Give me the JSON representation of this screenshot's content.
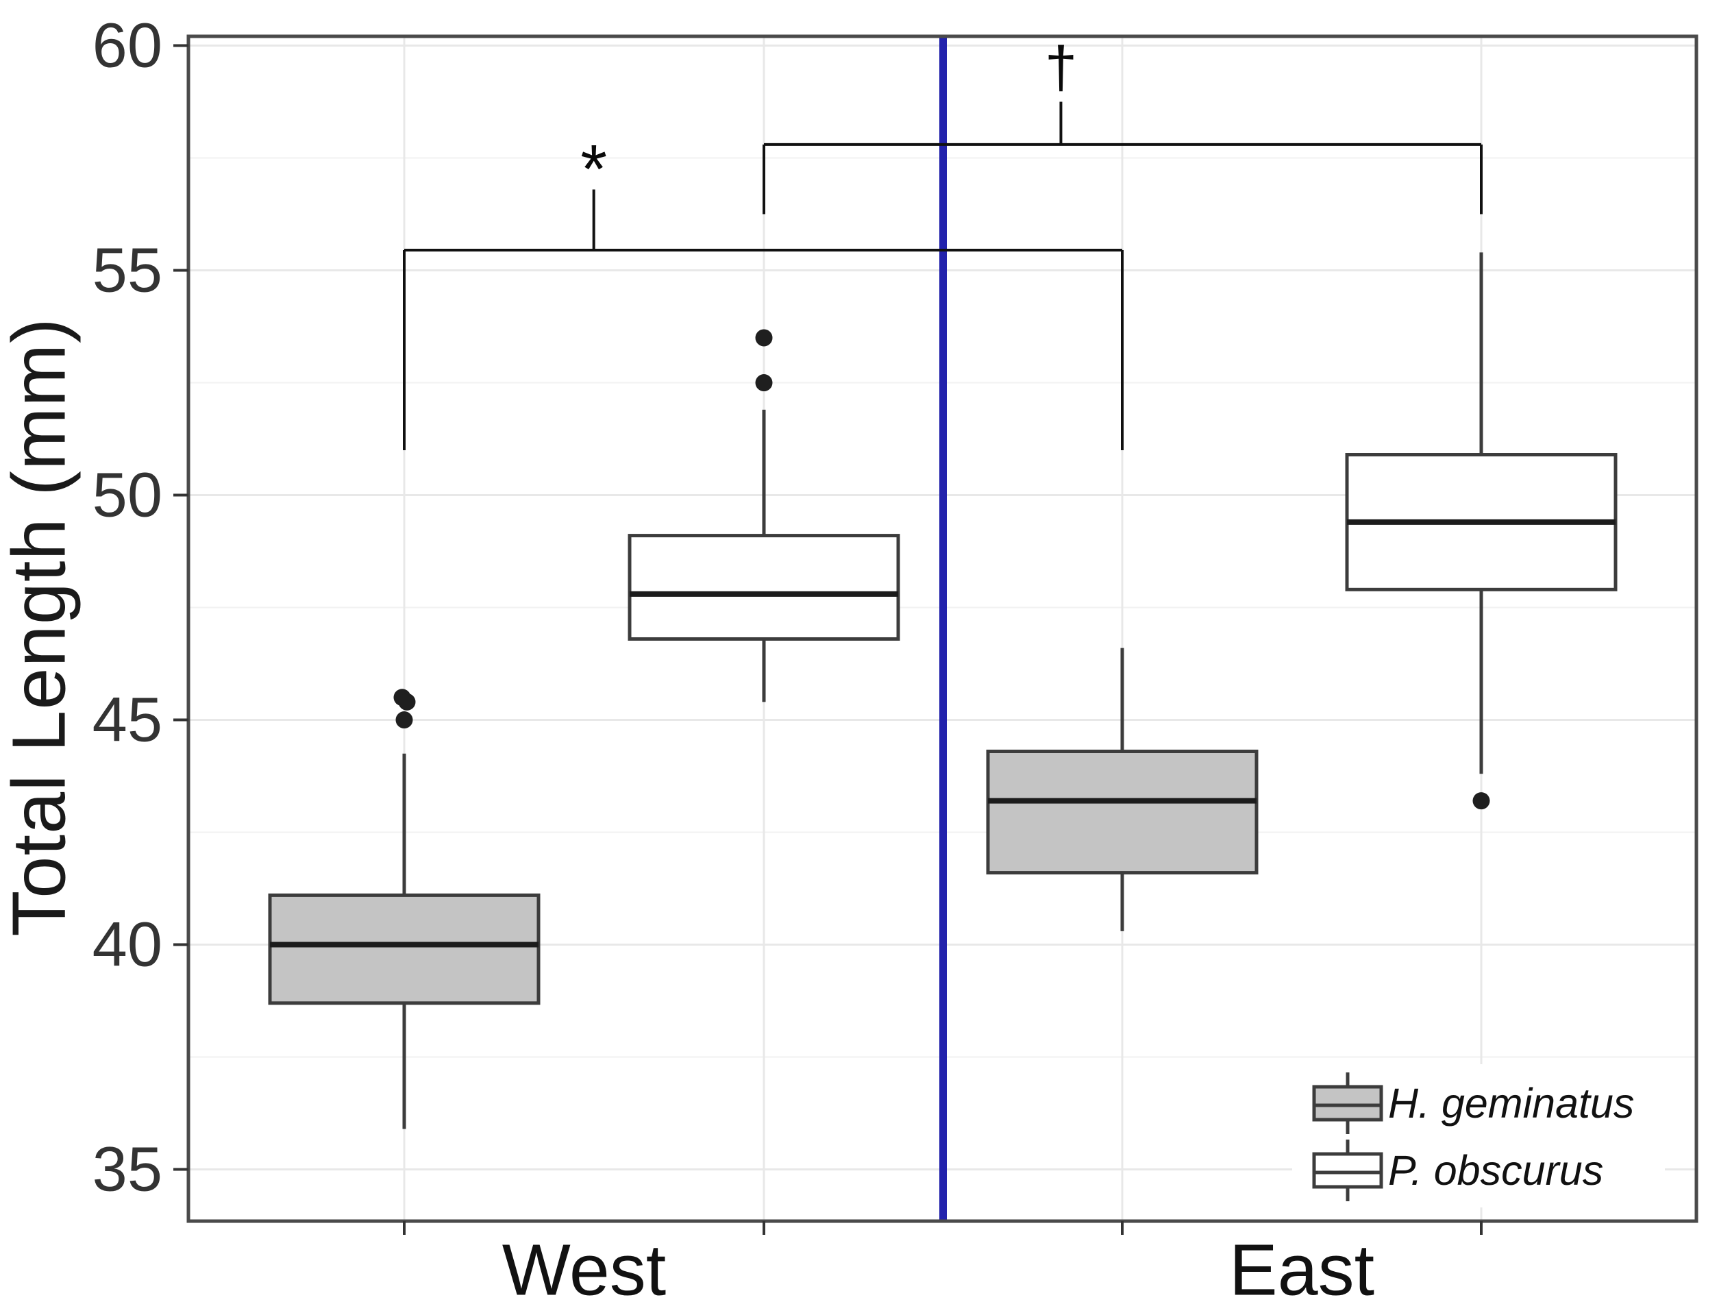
{
  "chart_data": {
    "type": "boxplot",
    "title": "",
    "xlabel": "",
    "ylabel": "Total Length (mm)",
    "y_axis": {
      "min": 33.85,
      "max": 60.2,
      "major_ticks": [
        35,
        40,
        45,
        50,
        55,
        60
      ],
      "minor_ticks": [
        37.5,
        42.5,
        47.5,
        52.5,
        57.5
      ],
      "grid": true
    },
    "groups": [
      "West",
      "East"
    ],
    "series": [
      {
        "name": "H. geminatus",
        "fill": "#c4c4c4"
      },
      {
        "name": "P. obscurus",
        "fill": "#ffffff"
      }
    ],
    "boxes": [
      {
        "group": "West",
        "series": "H. geminatus",
        "whisker_low": 35.9,
        "q1": 38.7,
        "median": 40.0,
        "q3": 41.1,
        "whisker_high": 44.25,
        "outliers": [
          45.5,
          45.4,
          45.0
        ]
      },
      {
        "group": "West",
        "series": "P. obscurus",
        "whisker_low": 45.4,
        "q1": 46.8,
        "median": 47.8,
        "q3": 49.1,
        "whisker_high": 51.9,
        "outliers": [
          53.5,
          52.5
        ]
      },
      {
        "group": "East",
        "series": "H. geminatus",
        "whisker_low": 40.3,
        "q1": 41.6,
        "median": 43.2,
        "q3": 44.3,
        "whisker_high": 46.6,
        "outliers": []
      },
      {
        "group": "East",
        "series": "P. obscurus",
        "whisker_low": 43.8,
        "q1": 47.9,
        "median": 49.4,
        "q3": 50.9,
        "whisker_high": 55.4,
        "outliers": [
          43.2
        ]
      }
    ],
    "divider": {
      "between": [
        "West",
        "East"
      ],
      "color": "#2222ac"
    },
    "annotations": [
      {
        "symbol": "*",
        "connects_series": "H. geminatus",
        "from_box": 0,
        "to_box": 2,
        "bar_y": 55.45,
        "end_drop_to": 51.0,
        "tick_frac": 0.264,
        "tick_top": 56.8,
        "symbol_y": 57.6
      },
      {
        "symbol": "†",
        "connects_series": "P. obscurus",
        "from_box": 1,
        "to_box": 3,
        "bar_y": 57.8,
        "end_drop_to": 56.25,
        "tick_frac": 0.414,
        "tick_top": 58.75,
        "symbol_y": 59.5
      }
    ],
    "legend_position": "bottom-right",
    "colors": {
      "panel_border": "#4a4a4a",
      "grid_major": "#e8e8e8",
      "grid_minor": "#f2f2f2",
      "box_border": "#3c3c3c",
      "median_line": "#1c1c1c",
      "whisker": "#3c3c3c",
      "outlier": "#1f1f1f",
      "tick": "#333333",
      "bracket": "#111111",
      "divider_blue": "#2222ac"
    }
  }
}
